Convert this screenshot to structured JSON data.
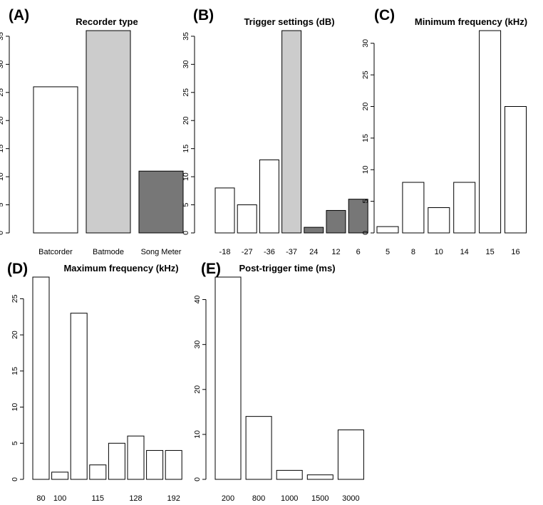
{
  "chart_data": [
    {
      "panel": "(A)",
      "title": "Recorder type",
      "type": "bar",
      "categories": [
        "Batcorder",
        "Batmode",
        "Song Meter"
      ],
      "values": [
        26,
        36,
        11
      ],
      "colors": [
        "#ffffff",
        "#cccccc",
        "#777777"
      ],
      "yticks": [
        0,
        5,
        10,
        15,
        20,
        25,
        30,
        35
      ],
      "ylim": [
        0,
        36
      ]
    },
    {
      "panel": "(B)",
      "title": "Trigger settings (dB)",
      "type": "bar",
      "categories": [
        "-18",
        "-27",
        "-36",
        "-37",
        "24",
        "12",
        "6"
      ],
      "values": [
        8,
        5,
        13,
        36,
        1,
        4,
        6
      ],
      "colors": [
        "#ffffff",
        "#ffffff",
        "#ffffff",
        "#cccccc",
        "#777777",
        "#777777",
        "#777777"
      ],
      "yticks": [
        0,
        5,
        10,
        15,
        20,
        25,
        30,
        35
      ],
      "ylim": [
        0,
        36
      ]
    },
    {
      "panel": "(C)",
      "title": "Minimum frequency (kHz)",
      "type": "bar",
      "categories": [
        "5",
        "8",
        "10",
        "14",
        "15",
        "16"
      ],
      "values": [
        1,
        8,
        4,
        8,
        32,
        20
      ],
      "colors": [
        "#ffffff",
        "#ffffff",
        "#ffffff",
        "#ffffff",
        "#ffffff",
        "#ffffff"
      ],
      "yticks": [
        0,
        5,
        10,
        15,
        20,
        25,
        30
      ],
      "ylim": [
        0,
        32
      ]
    },
    {
      "panel": "(D)",
      "title": "Maximum frequency (kHz)",
      "type": "bar",
      "categories": [
        "80",
        "100",
        "",
        "115",
        "",
        "128",
        "",
        "192"
      ],
      "values": [
        28,
        1,
        23,
        2,
        5,
        6,
        4,
        4
      ],
      "colors": [
        "#ffffff",
        "#ffffff",
        "#ffffff",
        "#ffffff",
        "#ffffff",
        "#ffffff",
        "#ffffff",
        "#ffffff"
      ],
      "yticks": [
        0,
        5,
        10,
        15,
        20,
        25
      ],
      "ylim": [
        0,
        28
      ]
    },
    {
      "panel": "(E)",
      "title": "Post-trigger time (ms)",
      "type": "bar",
      "categories": [
        "200",
        "800",
        "1000",
        "1500",
        "3000"
      ],
      "values": [
        45,
        14,
        2,
        1,
        11
      ],
      "colors": [
        "#ffffff",
        "#ffffff",
        "#ffffff",
        "#ffffff",
        "#ffffff"
      ],
      "yticks": [
        0,
        10,
        20,
        30,
        40
      ],
      "ylim": [
        0,
        45
      ]
    }
  ]
}
